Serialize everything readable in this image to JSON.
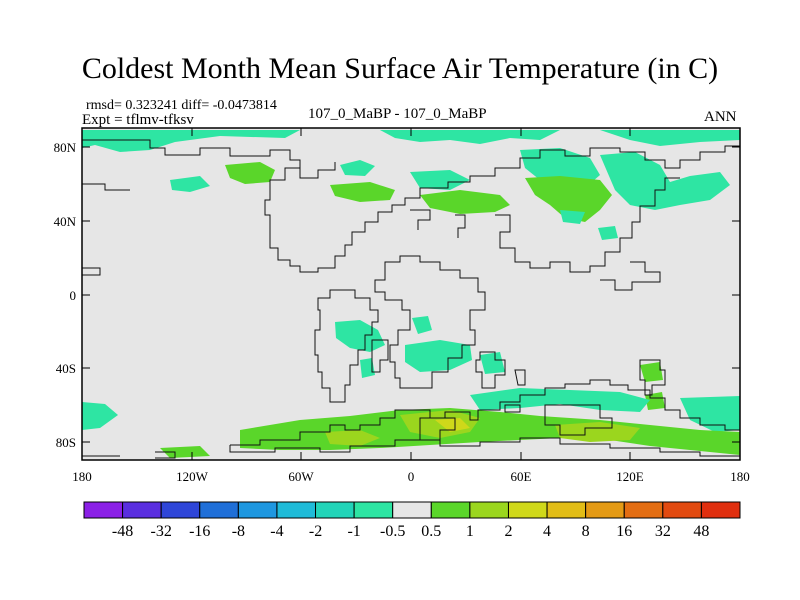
{
  "title": "Coldest Month Mean Surface Air Temperature (in C)",
  "stats": "rmsd= 0.323241 diff= -0.0473814",
  "experiment": "Expt = tflmv-tfksv",
  "comparison": "107_0_MaBP - 107_0_MaBP",
  "season": "ANN",
  "lat_labels": [
    "80N",
    "40N",
    "0",
    "40S",
    "80S"
  ],
  "lon_labels": [
    "180",
    "120W",
    "60W",
    "0",
    "60E",
    "120E",
    "180"
  ],
  "colorbar": {
    "labels": [
      "-48",
      "-32",
      "-16",
      "-8",
      "-4",
      "-2",
      "-1",
      "-0.5",
      "0.5",
      "1",
      "2",
      "4",
      "8",
      "16",
      "32",
      "48"
    ],
    "colors": [
      "#8b20e6",
      "#5a2fe0",
      "#2f46d8",
      "#1f6fd8",
      "#1e97e0",
      "#1fbbd8",
      "#22d4b8",
      "#2ee5a3",
      "#e6e6e6",
      "#5ad62a",
      "#9bd61e",
      "#cfd81a",
      "#e2bd17",
      "#e49a15",
      "#e36d12",
      "#e24a10",
      "#e02f0e"
    ]
  },
  "colors": {
    "background": "#e6e6e6",
    "coast": "#111111"
  }
}
